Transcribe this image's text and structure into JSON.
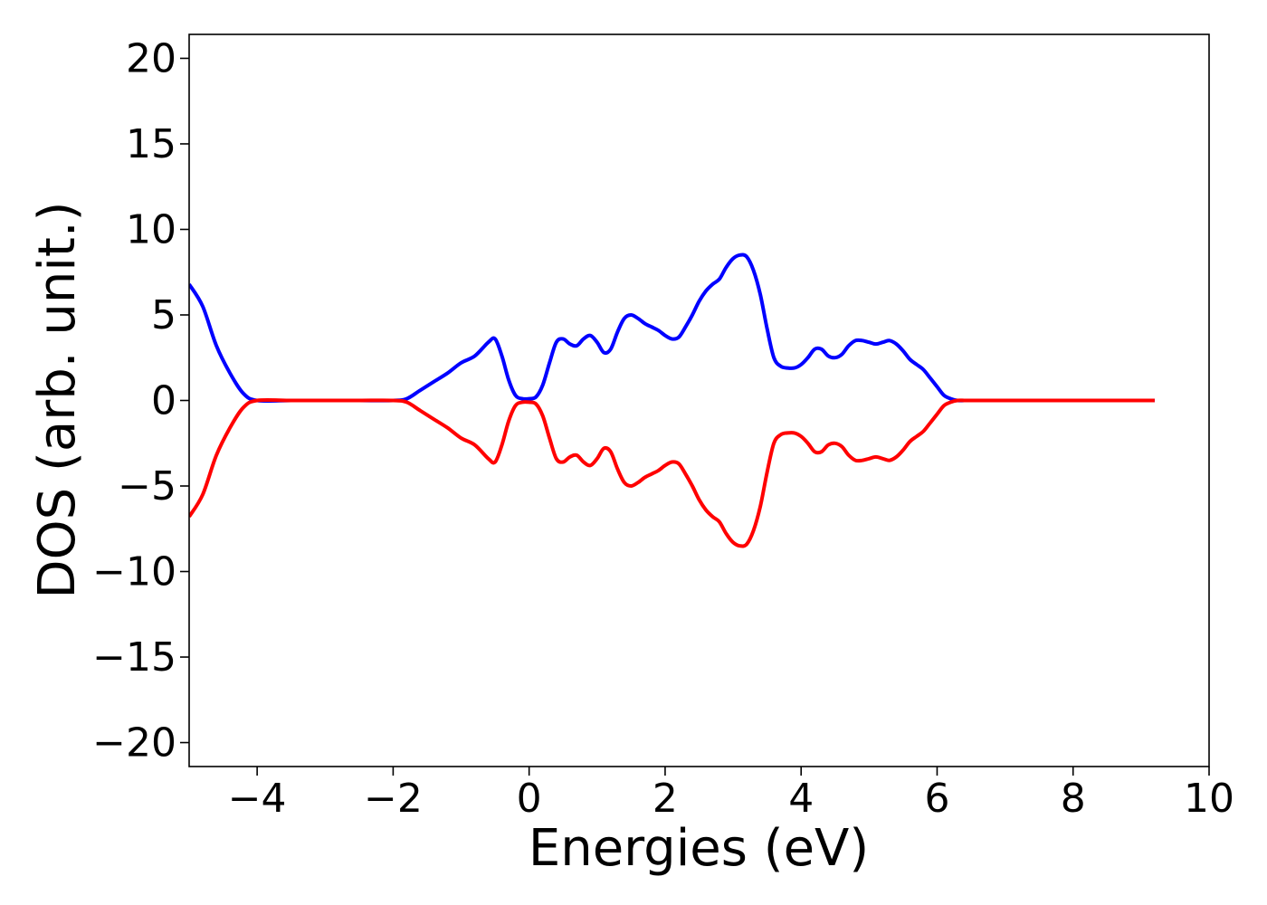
{
  "chart_data": {
    "type": "line",
    "title": "",
    "xlabel": "Energies (eV)",
    "ylabel": "DOS (arb. unit.)",
    "xlim": [
      -5,
      10
    ],
    "ylim": [
      -21.4,
      21.4
    ],
    "xticks": [
      -4,
      -2,
      0,
      2,
      4,
      6,
      8,
      10
    ],
    "xtick_labels": [
      "−4",
      "−2",
      "0",
      "2",
      "4",
      "6",
      "8",
      "10"
    ],
    "yticks": [
      20,
      15,
      10,
      5,
      0,
      -5,
      -10,
      -15,
      -20
    ],
    "ytick_labels": [
      "20",
      "15",
      "10",
      "5",
      "0",
      "−5",
      "−10",
      "−15",
      "−20"
    ],
    "grid": false,
    "legend": "none",
    "series": [
      {
        "color": "#0000ff",
        "x": [
          -5,
          -4.8,
          -4.6,
          -4.4,
          -4.2,
          -4.0,
          -3.5,
          -3.0,
          -2.5,
          -2.0,
          -1.8,
          -1.6,
          -1.4,
          -1.2,
          -1.0,
          -0.8,
          -0.6,
          -0.5,
          -0.4,
          -0.3,
          -0.2,
          -0.1,
          0.0,
          0.1,
          0.2,
          0.3,
          0.4,
          0.5,
          0.6,
          0.7,
          0.8,
          0.9,
          1.0,
          1.1,
          1.2,
          1.3,
          1.4,
          1.5,
          1.6,
          1.7,
          1.8,
          1.9,
          2.0,
          2.1,
          2.2,
          2.3,
          2.4,
          2.5,
          2.6,
          2.7,
          2.8,
          2.9,
          3.0,
          3.1,
          3.2,
          3.3,
          3.4,
          3.5,
          3.6,
          3.7,
          3.8,
          3.9,
          4.0,
          4.1,
          4.2,
          4.3,
          4.4,
          4.5,
          4.6,
          4.7,
          4.8,
          4.9,
          5.0,
          5.1,
          5.2,
          5.3,
          5.4,
          5.5,
          5.6,
          5.7,
          5.8,
          5.9,
          6.0,
          6.1,
          6.2,
          6.3,
          6.4,
          6.5,
          6.6,
          6.7,
          6.8,
          6.9,
          7.0,
          7.5,
          8.0,
          8.5,
          9.0,
          9.2
        ],
        "y": [
          6.8,
          5.5,
          3.2,
          1.6,
          0.4,
          0.0,
          0.0,
          0.0,
          0.0,
          0.0,
          0.1,
          0.6,
          1.1,
          1.6,
          2.2,
          2.6,
          3.4,
          3.6,
          2.6,
          1.2,
          0.3,
          0.1,
          0.1,
          0.2,
          0.9,
          2.2,
          3.4,
          3.6,
          3.3,
          3.2,
          3.6,
          3.8,
          3.4,
          2.8,
          3.0,
          4.0,
          4.8,
          5.0,
          4.8,
          4.5,
          4.3,
          4.1,
          3.8,
          3.6,
          3.7,
          4.3,
          5.0,
          5.8,
          6.4,
          6.8,
          7.1,
          7.8,
          8.3,
          8.5,
          8.4,
          7.6,
          6.2,
          4.2,
          2.5,
          2.0,
          1.9,
          1.9,
          2.1,
          2.5,
          3.0,
          3.0,
          2.6,
          2.5,
          2.7,
          3.2,
          3.5,
          3.5,
          3.4,
          3.3,
          3.4,
          3.5,
          3.3,
          2.9,
          2.4,
          2.1,
          1.8,
          1.3,
          0.8,
          0.3,
          0.1,
          0.0,
          0.0,
          0.0,
          0.0,
          0.0,
          0.0,
          0.0,
          0.0,
          0.0,
          0.0,
          0.0,
          0.0,
          0.0
        ]
      },
      {
        "color": "#ff0000",
        "x": [
          -5,
          -4.8,
          -4.6,
          -4.4,
          -4.2,
          -4.0,
          -3.5,
          -3.0,
          -2.5,
          -2.0,
          -1.8,
          -1.6,
          -1.4,
          -1.2,
          -1.0,
          -0.8,
          -0.6,
          -0.5,
          -0.4,
          -0.3,
          -0.2,
          -0.1,
          0.0,
          0.1,
          0.2,
          0.3,
          0.4,
          0.5,
          0.6,
          0.7,
          0.8,
          0.9,
          1.0,
          1.1,
          1.2,
          1.3,
          1.4,
          1.5,
          1.6,
          1.7,
          1.8,
          1.9,
          2.0,
          2.1,
          2.2,
          2.3,
          2.4,
          2.5,
          2.6,
          2.7,
          2.8,
          2.9,
          3.0,
          3.1,
          3.2,
          3.3,
          3.4,
          3.5,
          3.6,
          3.7,
          3.8,
          3.9,
          4.0,
          4.1,
          4.2,
          4.3,
          4.4,
          4.5,
          4.6,
          4.7,
          4.8,
          4.9,
          5.0,
          5.1,
          5.2,
          5.3,
          5.4,
          5.5,
          5.6,
          5.7,
          5.8,
          5.9,
          6.0,
          6.1,
          6.2,
          6.3,
          6.4,
          6.5,
          6.6,
          6.7,
          6.8,
          6.9,
          7.0,
          7.5,
          8.0,
          8.5,
          9.0,
          9.2
        ],
        "y": [
          -6.8,
          -5.5,
          -3.2,
          -1.6,
          -0.4,
          0.0,
          0.0,
          0.0,
          0.0,
          0.0,
          -0.1,
          -0.6,
          -1.1,
          -1.6,
          -2.2,
          -2.6,
          -3.4,
          -3.6,
          -2.6,
          -1.2,
          -0.3,
          -0.1,
          -0.1,
          -0.2,
          -0.9,
          -2.2,
          -3.4,
          -3.6,
          -3.3,
          -3.2,
          -3.6,
          -3.8,
          -3.4,
          -2.8,
          -3.0,
          -4.0,
          -4.8,
          -5.0,
          -4.8,
          -4.5,
          -4.3,
          -4.1,
          -3.8,
          -3.6,
          -3.7,
          -4.3,
          -5.0,
          -5.8,
          -6.4,
          -6.8,
          -7.1,
          -7.8,
          -8.3,
          -8.5,
          -8.4,
          -7.6,
          -6.2,
          -4.2,
          -2.5,
          -2.0,
          -1.9,
          -1.9,
          -2.1,
          -2.5,
          -3.0,
          -3.0,
          -2.6,
          -2.5,
          -2.7,
          -3.2,
          -3.5,
          -3.5,
          -3.4,
          -3.3,
          -3.4,
          -3.5,
          -3.3,
          -2.9,
          -2.4,
          -2.1,
          -1.8,
          -1.3,
          -0.8,
          -0.3,
          -0.1,
          0.0,
          0.0,
          0.0,
          0.0,
          0.0,
          0.0,
          0.0,
          0.0,
          0.0,
          0.0,
          0.0,
          0.0,
          0.0
        ]
      }
    ]
  }
}
